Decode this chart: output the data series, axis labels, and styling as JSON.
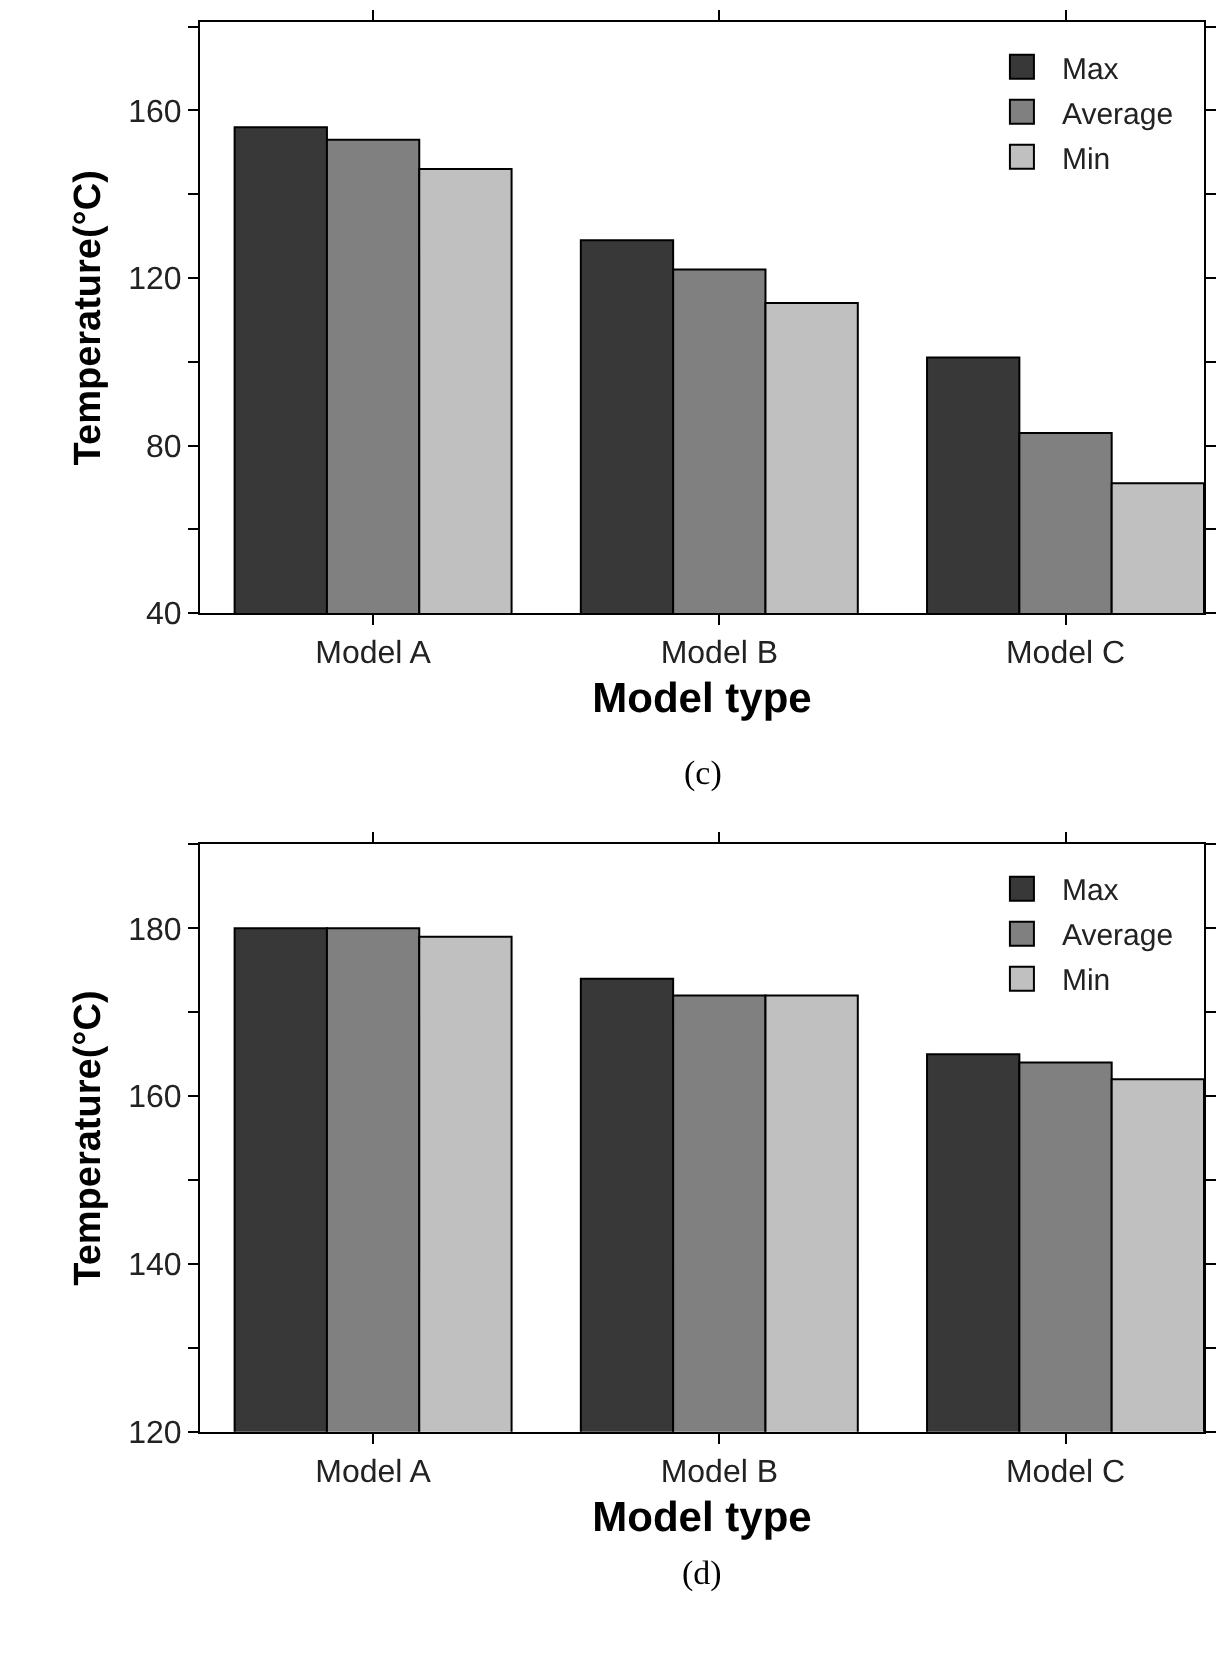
{
  "chart_data": [
    {
      "type": "bar",
      "categories": [
        "Model A",
        "Model B",
        "Model C"
      ],
      "xlabel": "Model type",
      "ylabel": "Temperature(°C)",
      "legend": "top right",
      "series": [
        {
          "name": "Max",
          "color": "#383838",
          "values": [
            156,
            129,
            101
          ]
        },
        {
          "name": "Average",
          "color": "#808080",
          "values": [
            153,
            122,
            83
          ]
        },
        {
          "name": "Min",
          "color": "#c0c0c0",
          "values": [
            146,
            114,
            71
          ]
        }
      ],
      "ylim": [
        40,
        181
      ],
      "yticks": [
        40,
        {
          "value": 60,
          "label": null
        },
        80,
        {
          "value": 100,
          "label": null
        },
        120,
        {
          "value": 140,
          "label": null
        },
        160,
        {
          "value": 180,
          "label": null
        }
      ],
      "annotations": [
        "(c)"
      ]
    },
    {
      "type": "bar",
      "categories": [
        "Model A",
        "Model B",
        "Model C"
      ],
      "xlabel": "Model type",
      "ylabel": "Temperature(°C)",
      "legend": "top right",
      "series": [
        {
          "name": "Max",
          "color": "#383838",
          "values": [
            180,
            174,
            165
          ]
        },
        {
          "name": "Average",
          "color": "#808080",
          "values": [
            180,
            172,
            164
          ]
        },
        {
          "name": "Min",
          "color": "#c0c0c0",
          "values": [
            179,
            172,
            162
          ]
        }
      ],
      "ylim": [
        120,
        190
      ],
      "yticks": [
        120,
        {
          "value": 130,
          "label": null
        },
        140,
        {
          "value": 150,
          "label": null
        },
        160,
        {
          "value": 170,
          "label": null
        },
        180,
        {
          "value": 190,
          "label": null
        }
      ],
      "annotations": [
        "(d)"
      ]
    }
  ]
}
